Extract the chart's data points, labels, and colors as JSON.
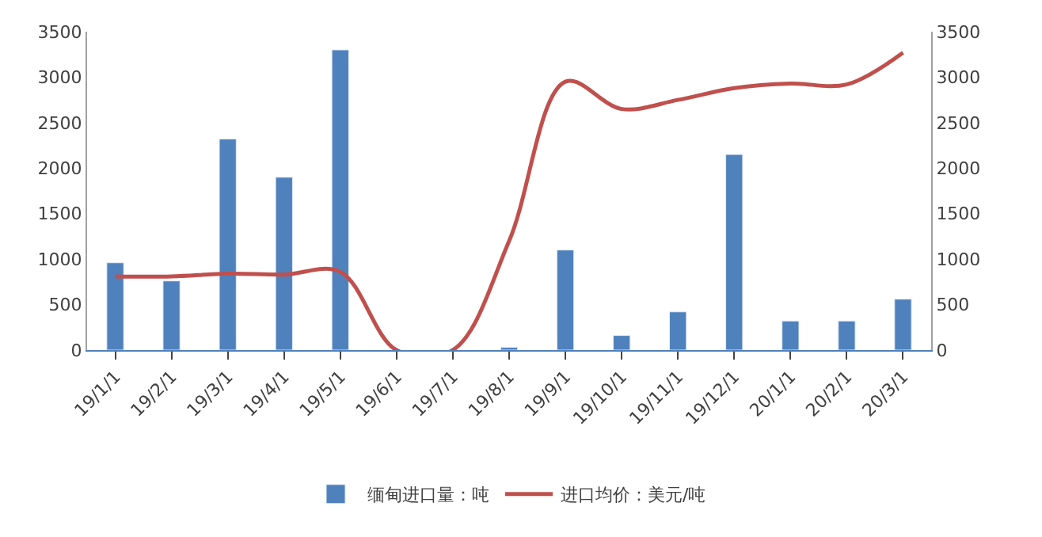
{
  "chart_data": {
    "type": "bar",
    "categories": [
      "19/1/1",
      "19/2/1",
      "19/3/1",
      "19/4/1",
      "19/5/1",
      "19/6/1",
      "19/7/1",
      "19/8/1",
      "19/9/1",
      "19/10/1",
      "19/11/1",
      "19/12/1",
      "20/1/1",
      "20/2/1",
      "20/3/1"
    ],
    "series": [
      {
        "name": "缅甸进口量：吨",
        "color": "#4f81bd",
        "values": [
          960,
          760,
          2320,
          1900,
          3300,
          null,
          null,
          30,
          1100,
          160,
          420,
          2150,
          320,
          320,
          560
        ]
      },
      {
        "name": "进口均价：美元/吨",
        "color": "#c0504d",
        "type": "line",
        "axis": "y2",
        "values": [
          810,
          810,
          840,
          830,
          860,
          0,
          0,
          1200,
          2950,
          2650,
          2750,
          2880,
          2930,
          2920,
          3270
        ]
      }
    ],
    "ylim": [
      0,
      3500
    ],
    "yticks": [
      0,
      500,
      1000,
      1500,
      2000,
      2500,
      3000,
      3500
    ],
    "y2lim": [
      0,
      3500
    ],
    "y2ticks": [
      0,
      500,
      1000,
      1500,
      2000,
      2500,
      3000,
      3500
    ],
    "legend": "bottom",
    "marker": "none"
  }
}
